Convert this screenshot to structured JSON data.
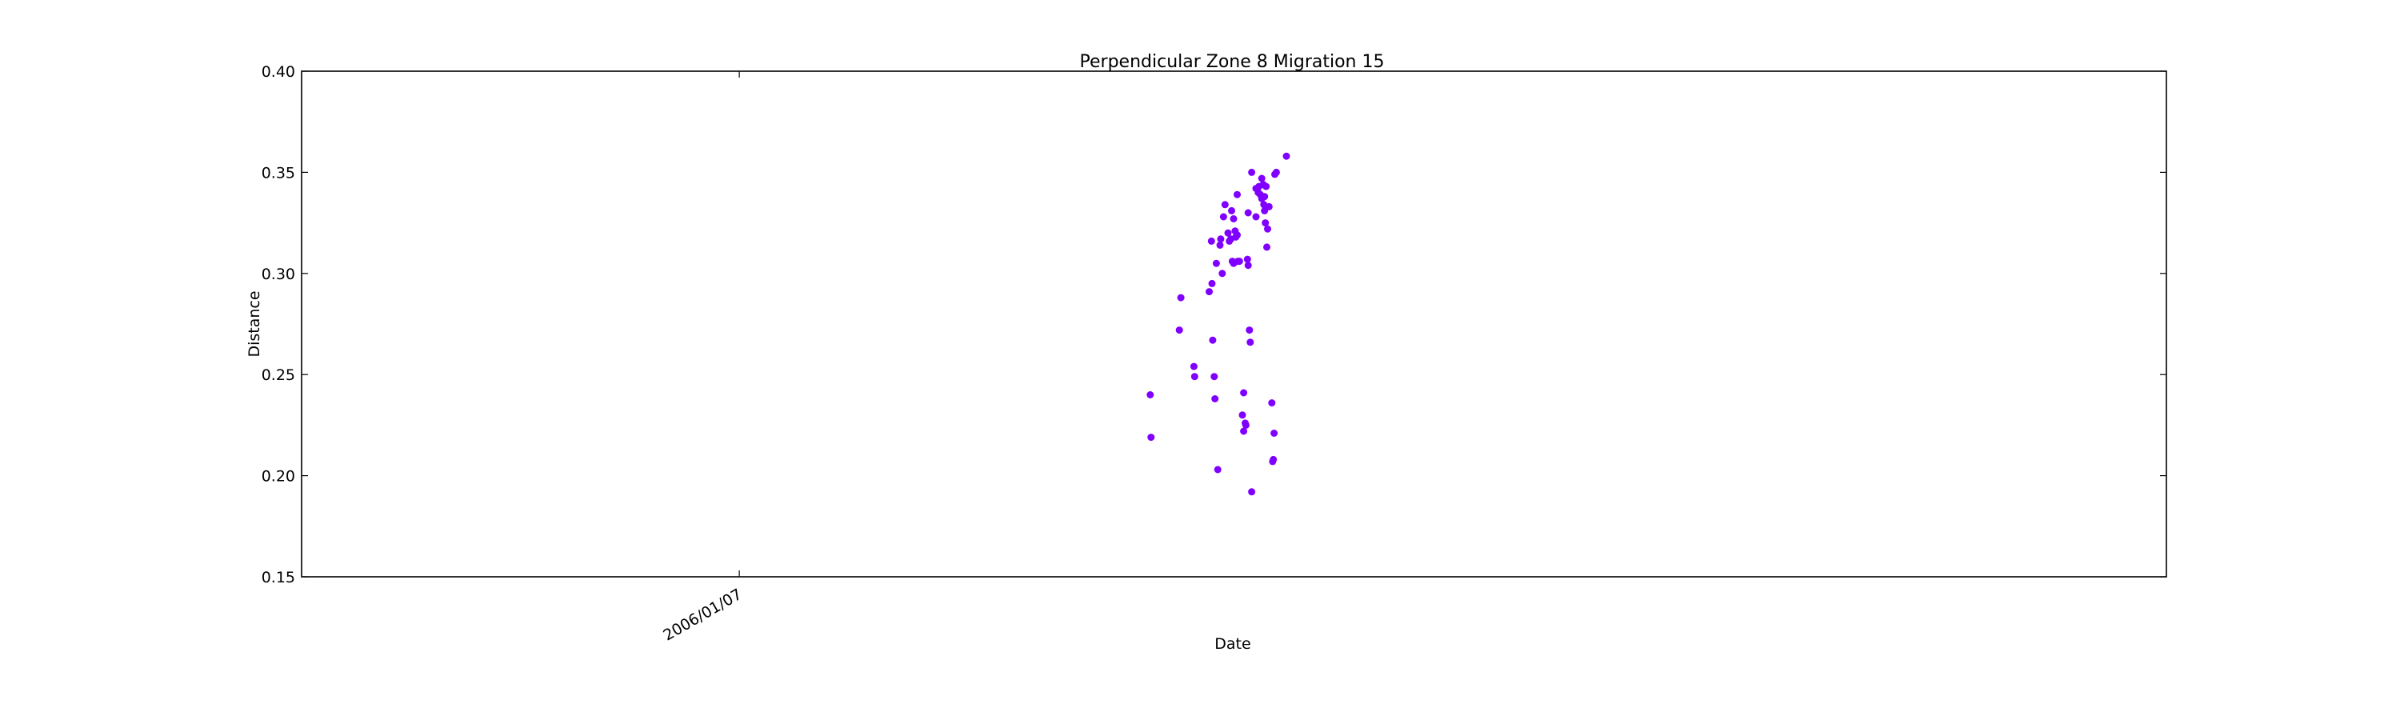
{
  "chart_data": {
    "type": "scatter",
    "title": "Perpendicular Zone 8 Migration 15",
    "xlabel": "Date",
    "ylabel": "Distance",
    "ylim": [
      0.15,
      0.4
    ],
    "yticks": [
      "0.15",
      "0.20",
      "0.25",
      "0.30",
      "0.35",
      "0.40"
    ],
    "xticks": [
      "2006/01/07"
    ],
    "xtick_rotation": "30 degrees",
    "grid": false,
    "legend": "none",
    "marker_color": "#8000ff",
    "x_note": "x positions expressed as fraction of the x-axis range (only one tick label printed)",
    "points": [
      [
        0.4551,
        0.24
      ],
      [
        0.4555,
        0.219
      ],
      [
        0.4707,
        0.272
      ],
      [
        0.4715,
        0.288
      ],
      [
        0.4785,
        0.254
      ],
      [
        0.4789,
        0.249
      ],
      [
        0.4867,
        0.291
      ],
      [
        0.4882,
        0.295
      ],
      [
        0.4879,
        0.316
      ],
      [
        0.4886,
        0.267
      ],
      [
        0.4894,
        0.249
      ],
      [
        0.4898,
        0.238
      ],
      [
        0.4905,
        0.305
      ],
      [
        0.4913,
        0.203
      ],
      [
        0.4925,
        0.314
      ],
      [
        0.4929,
        0.317
      ],
      [
        0.4937,
        0.3
      ],
      [
        0.4944,
        0.328
      ],
      [
        0.4952,
        0.334
      ],
      [
        0.4968,
        0.32
      ],
      [
        0.4975,
        0.316
      ],
      [
        0.4983,
        0.317
      ],
      [
        0.4987,
        0.331
      ],
      [
        0.4991,
        0.306
      ],
      [
        0.4998,
        0.305
      ],
      [
        0.4998,
        0.327
      ],
      [
        0.5006,
        0.321
      ],
      [
        0.501,
        0.318
      ],
      [
        0.5017,
        0.339
      ],
      [
        0.5017,
        0.319
      ],
      [
        0.5021,
        0.306
      ],
      [
        0.5029,
        0.306
      ],
      [
        0.5045,
        0.23
      ],
      [
        0.5052,
        0.222
      ],
      [
        0.5052,
        0.241
      ],
      [
        0.506,
        0.226
      ],
      [
        0.5064,
        0.225
      ],
      [
        0.5072,
        0.307
      ],
      [
        0.5076,
        0.304
      ],
      [
        0.5076,
        0.33
      ],
      [
        0.5083,
        0.272
      ],
      [
        0.5087,
        0.266
      ],
      [
        0.5095,
        0.35
      ],
      [
        0.5095,
        0.192
      ],
      [
        0.5118,
        0.328
      ],
      [
        0.5118,
        0.342
      ],
      [
        0.513,
        0.34
      ],
      [
        0.5134,
        0.343
      ],
      [
        0.5141,
        0.339
      ],
      [
        0.5149,
        0.347
      ],
      [
        0.5149,
        0.337
      ],
      [
        0.5157,
        0.344
      ],
      [
        0.516,
        0.334
      ],
      [
        0.5164,
        0.331
      ],
      [
        0.5164,
        0.338
      ],
      [
        0.5168,
        0.325
      ],
      [
        0.5172,
        0.343
      ],
      [
        0.5176,
        0.313
      ],
      [
        0.518,
        0.322
      ],
      [
        0.5188,
        0.333
      ],
      [
        0.5203,
        0.236
      ],
      [
        0.5207,
        0.207
      ],
      [
        0.5211,
        0.208
      ],
      [
        0.5215,
        0.221
      ],
      [
        0.5219,
        0.349
      ],
      [
        0.5227,
        0.35
      ],
      [
        0.5281,
        0.358
      ]
    ]
  }
}
